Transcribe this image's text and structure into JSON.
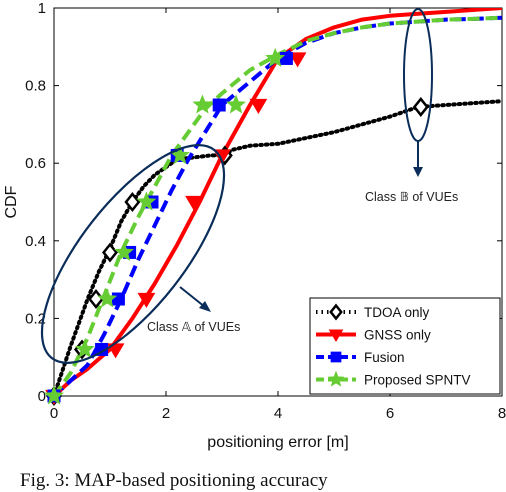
{
  "chart_data": {
    "type": "line",
    "title": "",
    "xlabel": "positioning error [m]",
    "ylabel": "CDF",
    "xlim": [
      0,
      8
    ],
    "ylim": [
      0,
      1
    ],
    "xticks": [
      "0",
      "2",
      "4",
      "6",
      "8"
    ],
    "yticks": [
      "0",
      "0.2",
      "0.4",
      "0.6",
      "0.8",
      "1"
    ],
    "grid": false,
    "legend_position": "bottom-right",
    "series": [
      {
        "name": "TDOA only",
        "color": "#000000",
        "line": "dotted",
        "marker": "diamond",
        "x": [
          0,
          0.3,
          0.6,
          0.8,
          1.0,
          1.2,
          1.4,
          1.6,
          1.8,
          2.0,
          2.2,
          2.5,
          2.8,
          3.0,
          3.2,
          3.5,
          4.0,
          4.5,
          5.0,
          5.5,
          6.0,
          6.5,
          7.0,
          7.5,
          8.0
        ],
        "y": [
          0,
          0.13,
          0.25,
          0.32,
          0.38,
          0.45,
          0.5,
          0.54,
          0.57,
          0.59,
          0.61,
          0.615,
          0.62,
          0.62,
          0.635,
          0.645,
          0.65,
          0.665,
          0.68,
          0.7,
          0.72,
          0.745,
          0.75,
          0.755,
          0.76
        ],
        "marker_x": [
          0,
          0.5,
          0.75,
          1.0,
          1.4,
          3.05,
          6.55
        ],
        "marker_y": [
          0,
          0.12,
          0.25,
          0.37,
          0.5,
          0.62,
          0.745
        ]
      },
      {
        "name": "GNSS only",
        "color": "#ff0000",
        "line": "solid",
        "marker": "triangle-down",
        "x": [
          0,
          0.3,
          0.6,
          1.0,
          1.4,
          1.8,
          2.2,
          2.6,
          3.0,
          3.5,
          4.0,
          4.5,
          5.0,
          5.5,
          6.0,
          6.5,
          7.0,
          7.5,
          8.0
        ],
        "y": [
          0,
          0.04,
          0.07,
          0.12,
          0.2,
          0.29,
          0.39,
          0.5,
          0.62,
          0.75,
          0.87,
          0.92,
          0.95,
          0.97,
          0.98,
          0.985,
          0.99,
          0.995,
          1.0
        ],
        "marker_x": [
          0,
          1.1,
          1.65,
          2.5,
          3.0,
          3.65,
          4.35
        ],
        "marker_y": [
          0,
          0.12,
          0.25,
          0.5,
          0.62,
          0.75,
          0.87
        ]
      },
      {
        "name": "Fusion",
        "color": "#0000ff",
        "line": "dashed",
        "marker": "square",
        "x": [
          0,
          0.3,
          0.6,
          0.9,
          1.2,
          1.5,
          1.8,
          2.1,
          2.4,
          2.7,
          3.0,
          3.5,
          4.0,
          4.5,
          5.0,
          5.5,
          6.0,
          6.5,
          7.0,
          7.5,
          8.0
        ],
        "y": [
          0,
          0.04,
          0.08,
          0.16,
          0.25,
          0.35,
          0.44,
          0.53,
          0.61,
          0.68,
          0.75,
          0.81,
          0.87,
          0.91,
          0.935,
          0.95,
          0.96,
          0.965,
          0.97,
          0.972,
          0.975
        ],
        "marker_x": [
          0,
          0.85,
          1.15,
          1.35,
          1.75,
          2.2,
          2.95,
          4.15
        ],
        "marker_y": [
          0,
          0.12,
          0.25,
          0.37,
          0.5,
          0.62,
          0.75,
          0.87
        ]
      },
      {
        "name": "Proposed SPNTV",
        "color": "#66cc33",
        "line": "dashed",
        "marker": "star",
        "x": [
          0,
          0.3,
          0.6,
          0.9,
          1.2,
          1.5,
          1.8,
          2.1,
          2.4,
          2.7,
          3.0,
          3.5,
          4.0,
          4.5,
          5.0,
          5.5,
          6.0,
          6.5,
          7.0,
          7.5,
          8.0
        ],
        "y": [
          0,
          0.06,
          0.15,
          0.26,
          0.37,
          0.46,
          0.54,
          0.62,
          0.68,
          0.74,
          0.78,
          0.84,
          0.88,
          0.915,
          0.935,
          0.95,
          0.96,
          0.965,
          0.97,
          0.972,
          0.975
        ],
        "marker_x": [
          0,
          0.55,
          0.95,
          1.25,
          1.65,
          2.25,
          2.65,
          3.25,
          3.95
        ],
        "marker_y": [
          0,
          0.12,
          0.25,
          0.37,
          0.5,
          0.62,
          0.75,
          0.75,
          0.87
        ]
      }
    ],
    "annotations": [
      {
        "text_prefix": "Class ",
        "symbol": "𝔸",
        "text_suffix": " of VUEs"
      },
      {
        "text_prefix": "Class ",
        "symbol": "𝔹",
        "text_suffix": " of VUEs"
      }
    ]
  },
  "caption": "Fig. 3: MAP-based positioning accuracy"
}
